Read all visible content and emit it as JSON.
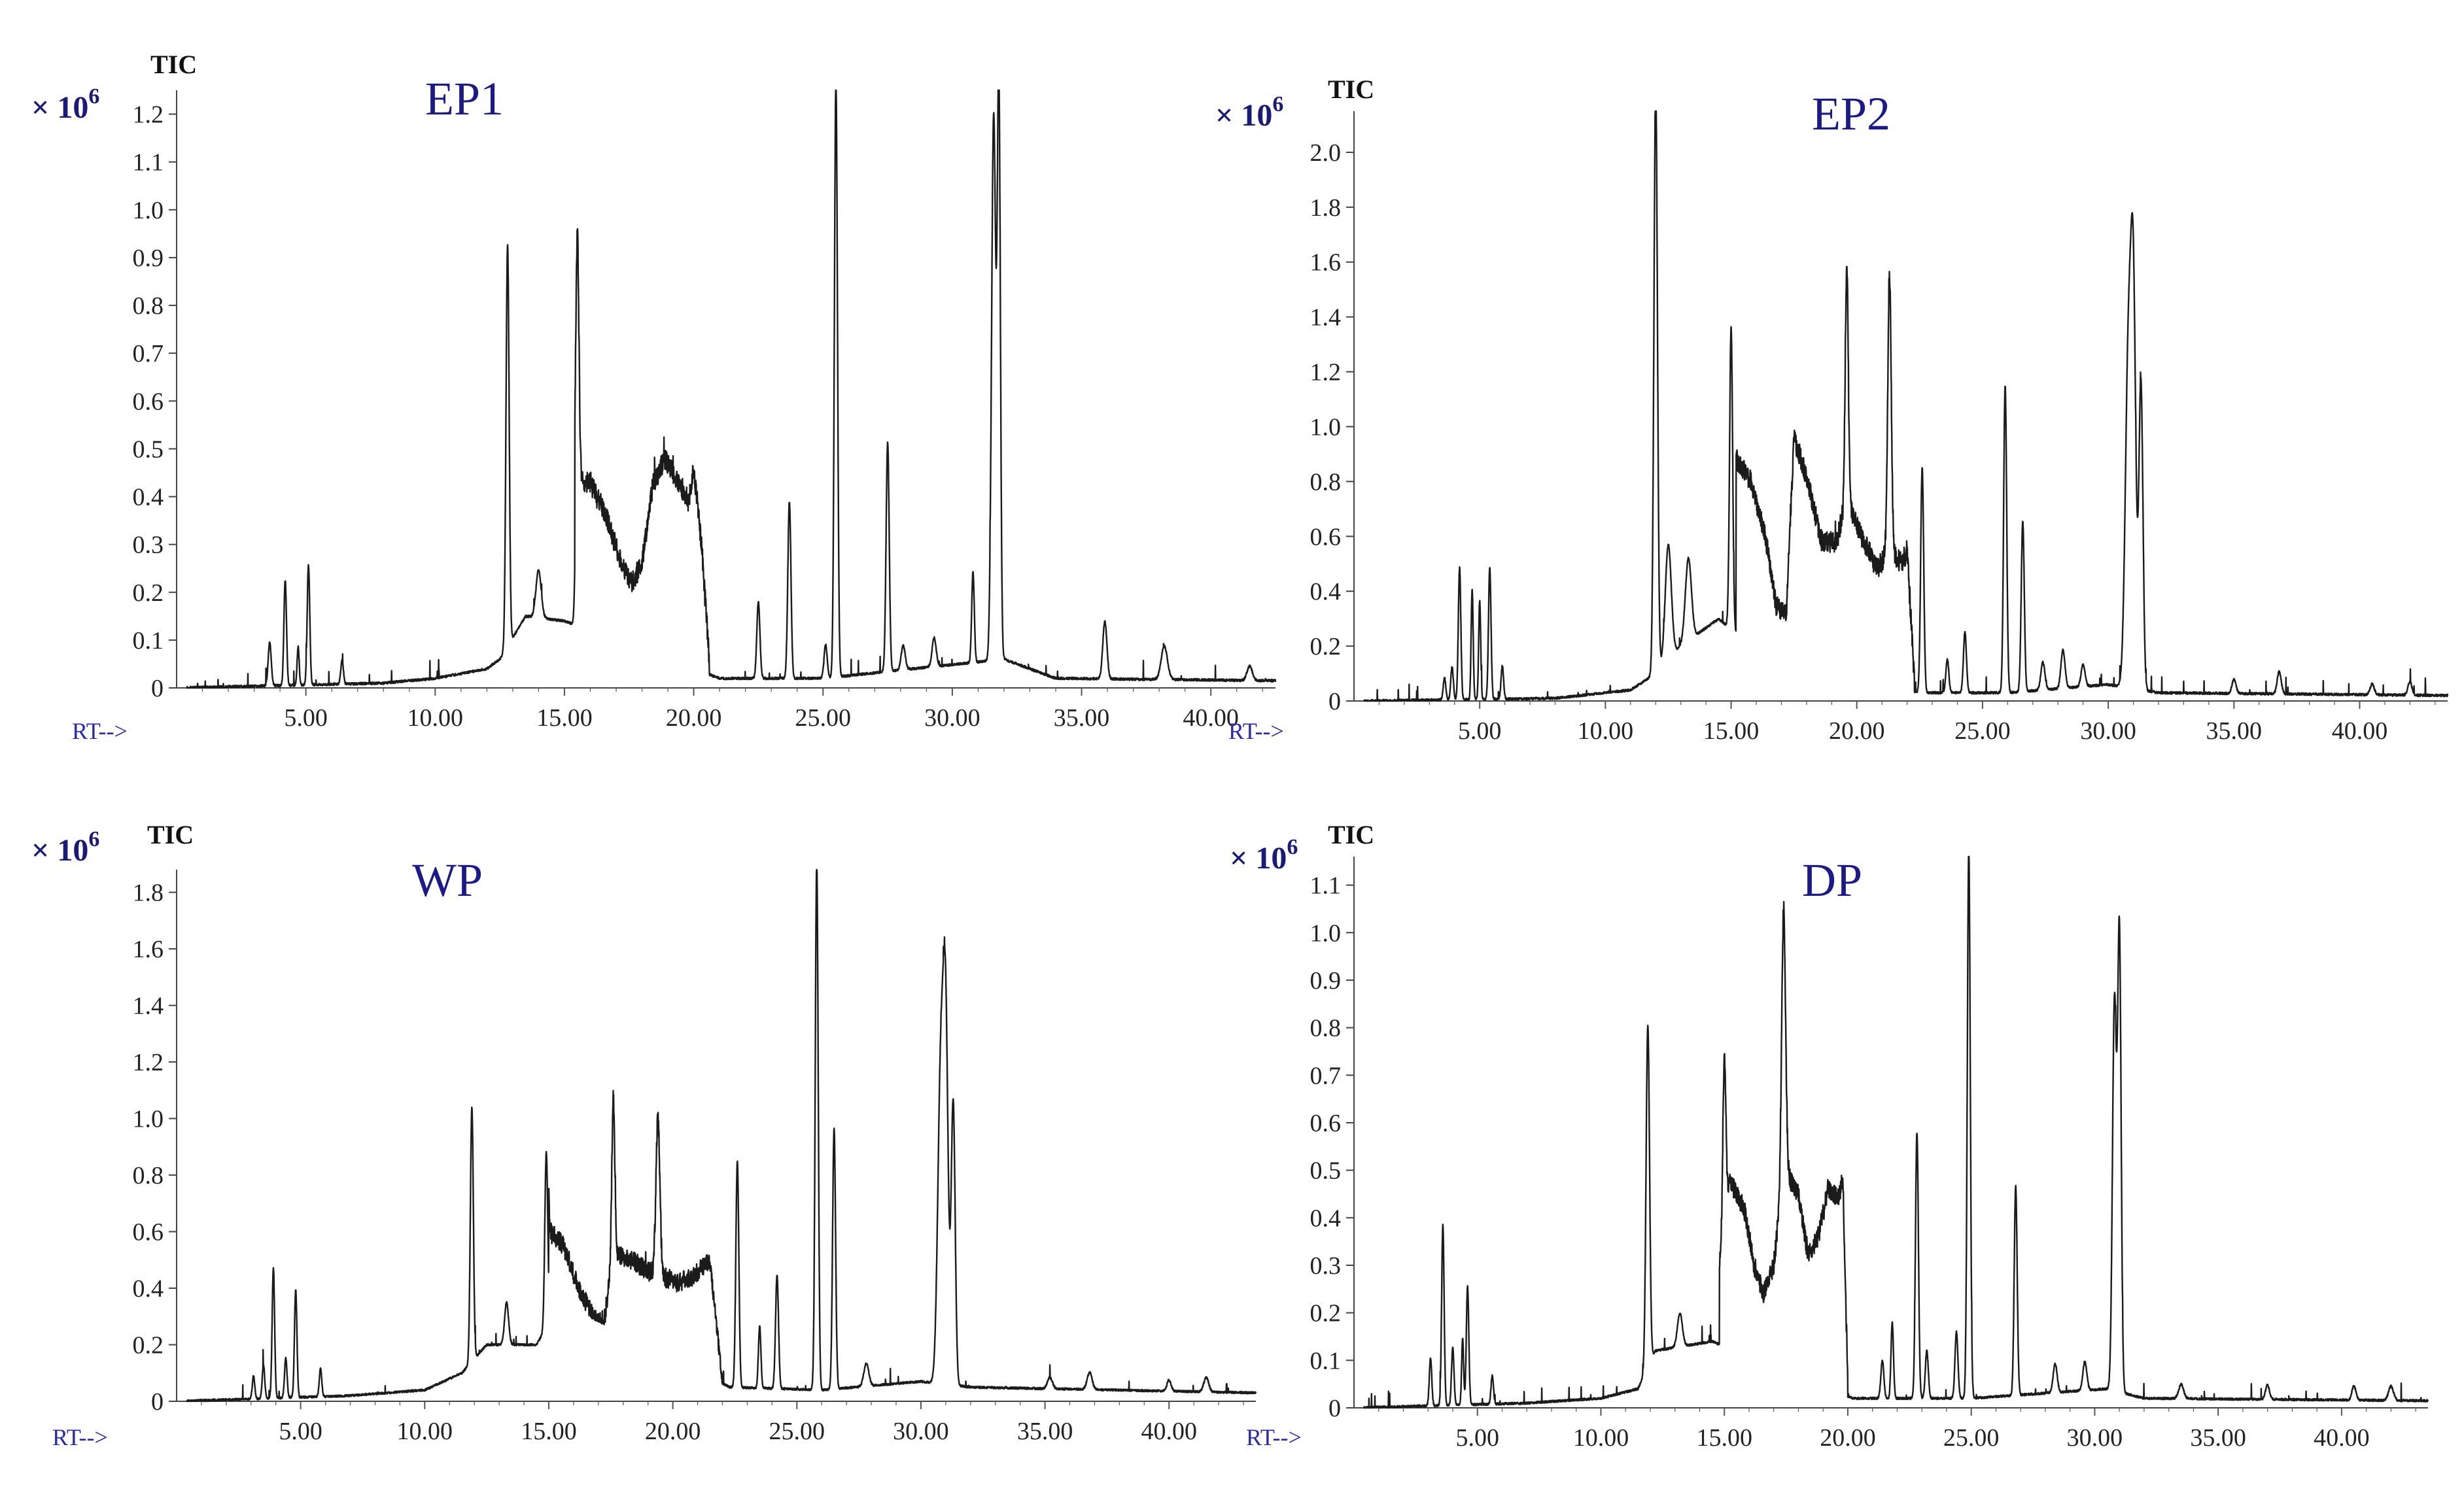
{
  "chart_data": [
    {
      "type": "line",
      "title": "EP1",
      "ylabel": "TIC",
      "multiplier": "× 10",
      "multiplier_exp": "6",
      "xlabel": "RT-->",
      "xticks": [
        "5.00",
        "10.00",
        "15.00",
        "20.00",
        "25.00",
        "30.00",
        "35.00",
        "40.00"
      ],
      "yticks": [
        "0",
        "0.1",
        "0.2",
        "0.3",
        "0.4",
        "0.5",
        "0.6",
        "0.7",
        "0.8",
        "0.9",
        "1.0",
        "1.1",
        "1.2"
      ],
      "xlim": [
        0,
        42.5
      ],
      "ylim": [
        0,
        1.25
      ],
      "baseline": [
        [
          0,
          0
        ],
        [
          8,
          0.01
        ],
        [
          10,
          0.02
        ],
        [
          12,
          0.04
        ],
        [
          12.5,
          0.06
        ],
        [
          13.5,
          0.15
        ],
        [
          15,
          0.14
        ],
        [
          21,
          0.02
        ],
        [
          25,
          0.02
        ],
        [
          32,
          0.06
        ],
        [
          34,
          0.02
        ],
        [
          42.5,
          0.015
        ]
      ],
      "plateaus": [
        [
          15.4,
          20.6,
          [
            [
              15.4,
              0.43
            ],
            [
              16.0,
              0.43
            ],
            [
              16.6,
              0.36
            ],
            [
              17.2,
              0.26
            ],
            [
              17.6,
              0.22
            ],
            [
              18.0,
              0.26
            ],
            [
              18.4,
              0.42
            ],
            [
              18.9,
              0.48
            ],
            [
              19.4,
              0.43
            ],
            [
              19.8,
              0.39
            ],
            [
              20.0,
              0.46
            ],
            [
              20.3,
              0.3
            ],
            [
              20.6,
              0.06
            ]
          ]
        ]
      ],
      "peaks": [
        [
          3.6,
          0.09,
          0.06
        ],
        [
          4.2,
          0.22,
          0.05
        ],
        [
          4.7,
          0.08,
          0.04
        ],
        [
          5.1,
          0.25,
          0.05
        ],
        [
          6.4,
          0.05,
          0.05
        ],
        [
          12.8,
          0.84,
          0.06
        ],
        [
          14.0,
          0.1,
          0.1
        ],
        [
          15.5,
          0.52,
          0.06
        ],
        [
          22.5,
          0.16,
          0.06
        ],
        [
          23.7,
          0.37,
          0.06
        ],
        [
          25.1,
          0.07,
          0.06
        ],
        [
          25.5,
          1.25,
          0.06
        ],
        [
          27.5,
          0.48,
          0.06
        ],
        [
          28.1,
          0.05,
          0.08
        ],
        [
          29.3,
          0.06,
          0.08
        ],
        [
          30.8,
          0.19,
          0.05
        ],
        [
          31.6,
          1.14,
          0.08
        ],
        [
          31.8,
          1.2,
          0.06
        ],
        [
          35.9,
          0.12,
          0.08
        ],
        [
          38.2,
          0.07,
          0.12
        ],
        [
          41.5,
          0.03,
          0.1
        ]
      ]
    },
    {
      "type": "line",
      "title": "EP2",
      "ylabel": "TIC",
      "multiplier": "× 10",
      "multiplier_exp": "6",
      "xlabel": "RT-->",
      "xticks": [
        "5.00",
        "10.00",
        "15.00",
        "20.00",
        "25.00",
        "30.00",
        "35.00",
        "40.00"
      ],
      "yticks": [
        "0",
        "0.2",
        "0.4",
        "0.6",
        "0.8",
        "1.0",
        "1.2",
        "1.4",
        "1.6",
        "1.8",
        "2.0"
      ],
      "xlim": [
        0,
        43.5
      ],
      "ylim": [
        0,
        2.15
      ],
      "baseline": [
        [
          0,
          0
        ],
        [
          8,
          0.01
        ],
        [
          11,
          0.04
        ],
        [
          12,
          0.1
        ],
        [
          13,
          0.2
        ],
        [
          14.5,
          0.3
        ],
        [
          16.5,
          0.15
        ],
        [
          22.5,
          0.03
        ],
        [
          26,
          0.03
        ],
        [
          30,
          0.06
        ],
        [
          32,
          0.03
        ],
        [
          43.5,
          0.02
        ]
      ],
      "plateaus": [
        [
          15.2,
          22.3,
          [
            [
              15.2,
              0.88
            ],
            [
              15.8,
              0.8
            ],
            [
              16.4,
              0.58
            ],
            [
              16.8,
              0.34
            ],
            [
              17.2,
              0.32
            ],
            [
              17.5,
              0.96
            ],
            [
              18.0,
              0.82
            ],
            [
              18.6,
              0.58
            ],
            [
              19.2,
              0.58
            ],
            [
              19.6,
              0.74
            ],
            [
              20.2,
              0.6
            ],
            [
              20.8,
              0.48
            ],
            [
              21.3,
              0.55
            ],
            [
              21.8,
              0.5
            ],
            [
              22.0,
              0.55
            ],
            [
              22.3,
              0.06
            ]
          ]
        ]
      ],
      "peaks": [
        [
          3.6,
          0.08,
          0.05
        ],
        [
          3.9,
          0.12,
          0.05
        ],
        [
          4.2,
          0.48,
          0.05
        ],
        [
          4.7,
          0.4,
          0.04
        ],
        [
          5.0,
          0.36,
          0.04
        ],
        [
          5.4,
          0.48,
          0.05
        ],
        [
          5.9,
          0.12,
          0.05
        ],
        [
          12.0,
          2.15,
          0.07
        ],
        [
          12.5,
          0.42,
          0.12
        ],
        [
          13.3,
          0.3,
          0.12
        ],
        [
          15.0,
          1.1,
          0.06
        ],
        [
          19.6,
          0.86,
          0.06
        ],
        [
          21.3,
          1.0,
          0.07
        ],
        [
          22.6,
          0.82,
          0.06
        ],
        [
          23.6,
          0.12,
          0.06
        ],
        [
          24.3,
          0.22,
          0.06
        ],
        [
          25.9,
          1.12,
          0.06
        ],
        [
          26.6,
          0.62,
          0.06
        ],
        [
          27.4,
          0.1,
          0.08
        ],
        [
          28.2,
          0.14,
          0.08
        ],
        [
          29.0,
          0.08,
          0.08
        ],
        [
          30.8,
          1.2,
          0.12
        ],
        [
          31.0,
          1.34,
          0.1
        ],
        [
          31.3,
          1.12,
          0.08
        ],
        [
          35.0,
          0.05,
          0.08
        ],
        [
          36.8,
          0.08,
          0.08
        ],
        [
          40.5,
          0.04,
          0.08
        ],
        [
          42.0,
          0.05,
          0.08
        ]
      ]
    },
    {
      "type": "line",
      "title": "WP",
      "ylabel": "TIC",
      "multiplier": "× 10",
      "multiplier_exp": "6",
      "xlabel": "RT-->",
      "xticks": [
        "5.00",
        "10.00",
        "15.00",
        "20.00",
        "25.00",
        "30.00",
        "35.00",
        "40.00"
      ],
      "yticks": [
        "0",
        "0.2",
        "0.4",
        "0.6",
        "0.8",
        "1.0",
        "1.2",
        "1.4",
        "1.6",
        "1.8"
      ],
      "xlim": [
        0,
        43.5
      ],
      "ylim": [
        0,
        1.88
      ],
      "baseline": [
        [
          0,
          0
        ],
        [
          7,
          0.02
        ],
        [
          10,
          0.04
        ],
        [
          11.5,
          0.1
        ],
        [
          12.5,
          0.2
        ],
        [
          14.5,
          0.2
        ],
        [
          15.5,
          0.35
        ],
        [
          22.3,
          0.05
        ],
        [
          26,
          0.04
        ],
        [
          30,
          0.07
        ],
        [
          32,
          0.05
        ],
        [
          43.5,
          0.03
        ]
      ],
      "plateaus": [
        [
          15.0,
          22.0,
          [
            [
              15.0,
              0.6
            ],
            [
              15.6,
              0.55
            ],
            [
              16.2,
              0.4
            ],
            [
              16.8,
              0.3
            ],
            [
              17.2,
              0.26
            ],
            [
              17.6,
              0.52
            ],
            [
              18.4,
              0.5
            ],
            [
              19.0,
              0.46
            ],
            [
              19.6,
              0.44
            ],
            [
              20.2,
              0.42
            ],
            [
              20.8,
              0.44
            ],
            [
              21.5,
              0.5
            ],
            [
              22.0,
              0.06
            ]
          ]
        ]
      ],
      "peaks": [
        [
          3.1,
          0.08,
          0.05
        ],
        [
          3.5,
          0.12,
          0.05
        ],
        [
          3.9,
          0.46,
          0.05
        ],
        [
          4.4,
          0.14,
          0.05
        ],
        [
          4.8,
          0.38,
          0.05
        ],
        [
          5.8,
          0.1,
          0.05
        ],
        [
          11.9,
          0.9,
          0.06
        ],
        [
          13.3,
          0.15,
          0.08
        ],
        [
          14.9,
          0.62,
          0.06
        ],
        [
          17.6,
          0.56,
          0.06
        ],
        [
          19.4,
          0.55,
          0.08
        ],
        [
          22.6,
          0.8,
          0.06
        ],
        [
          23.5,
          0.22,
          0.05
        ],
        [
          24.2,
          0.4,
          0.06
        ],
        [
          25.8,
          1.87,
          0.06
        ],
        [
          26.5,
          0.92,
          0.06
        ],
        [
          27.8,
          0.08,
          0.1
        ],
        [
          30.8,
          1.1,
          0.12
        ],
        [
          31.0,
          1.18,
          0.1
        ],
        [
          31.3,
          1.0,
          0.08
        ],
        [
          35.2,
          0.04,
          0.1
        ],
        [
          36.8,
          0.06,
          0.1
        ],
        [
          40.0,
          0.04,
          0.08
        ],
        [
          41.5,
          0.05,
          0.1
        ]
      ]
    },
    {
      "type": "line",
      "title": "DP",
      "ylabel": "TIC",
      "multiplier": "× 10",
      "multiplier_exp": "6",
      "xlabel": "RT-->",
      "xticks": [
        "5.00",
        "10.00",
        "15.00",
        "20.00",
        "25.00",
        "30.00",
        "35.00",
        "40.00"
      ],
      "yticks": [
        "0",
        "0.1",
        "0.2",
        "0.3",
        "0.4",
        "0.5",
        "0.6",
        "0.7",
        "0.8",
        "0.9",
        "1.0",
        "1.1"
      ],
      "xlim": [
        0,
        43.5
      ],
      "ylim": [
        0,
        1.16
      ],
      "baseline": [
        [
          0,
          0
        ],
        [
          7,
          0.01
        ],
        [
          10,
          0.02
        ],
        [
          11.5,
          0.04
        ],
        [
          12.2,
          0.12
        ],
        [
          14.5,
          0.14
        ],
        [
          20.2,
          0.02
        ],
        [
          25,
          0.02
        ],
        [
          30.5,
          0.04
        ],
        [
          32,
          0.02
        ],
        [
          43.5,
          0.015
        ]
      ],
      "plateaus": [
        [
          14.8,
          20.0,
          [
            [
              14.8,
              0.3
            ],
            [
              15.2,
              0.48
            ],
            [
              15.8,
              0.42
            ],
            [
              16.2,
              0.3
            ],
            [
              16.6,
              0.24
            ],
            [
              17.0,
              0.3
            ],
            [
              17.4,
              0.5
            ],
            [
              18.0,
              0.45
            ],
            [
              18.4,
              0.32
            ],
            [
              18.8,
              0.36
            ],
            [
              19.2,
              0.46
            ],
            [
              19.6,
              0.44
            ],
            [
              19.8,
              0.48
            ],
            [
              20.0,
              0.05
            ]
          ]
        ]
      ],
      "peaks": [
        [
          3.1,
          0.1,
          0.05
        ],
        [
          3.6,
          0.38,
          0.05
        ],
        [
          4.0,
          0.12,
          0.05
        ],
        [
          4.4,
          0.14,
          0.04
        ],
        [
          4.6,
          0.25,
          0.05
        ],
        [
          5.6,
          0.06,
          0.05
        ],
        [
          11.9,
          0.72,
          0.07
        ],
        [
          13.2,
          0.07,
          0.1
        ],
        [
          15.0,
          0.35,
          0.06
        ],
        [
          17.4,
          0.55,
          0.08
        ],
        [
          21.4,
          0.08,
          0.06
        ],
        [
          21.8,
          0.16,
          0.05
        ],
        [
          22.8,
          0.56,
          0.06
        ],
        [
          23.2,
          0.1,
          0.06
        ],
        [
          24.4,
          0.14,
          0.06
        ],
        [
          24.9,
          1.16,
          0.06
        ],
        [
          26.8,
          0.44,
          0.06
        ],
        [
          28.4,
          0.06,
          0.08
        ],
        [
          29.6,
          0.06,
          0.08
        ],
        [
          30.8,
          0.82,
          0.08
        ],
        [
          31.0,
          0.96,
          0.07
        ],
        [
          33.5,
          0.03,
          0.1
        ],
        [
          37.0,
          0.03,
          0.08
        ],
        [
          40.5,
          0.03,
          0.08
        ],
        [
          42.0,
          0.03,
          0.1
        ]
      ]
    }
  ]
}
